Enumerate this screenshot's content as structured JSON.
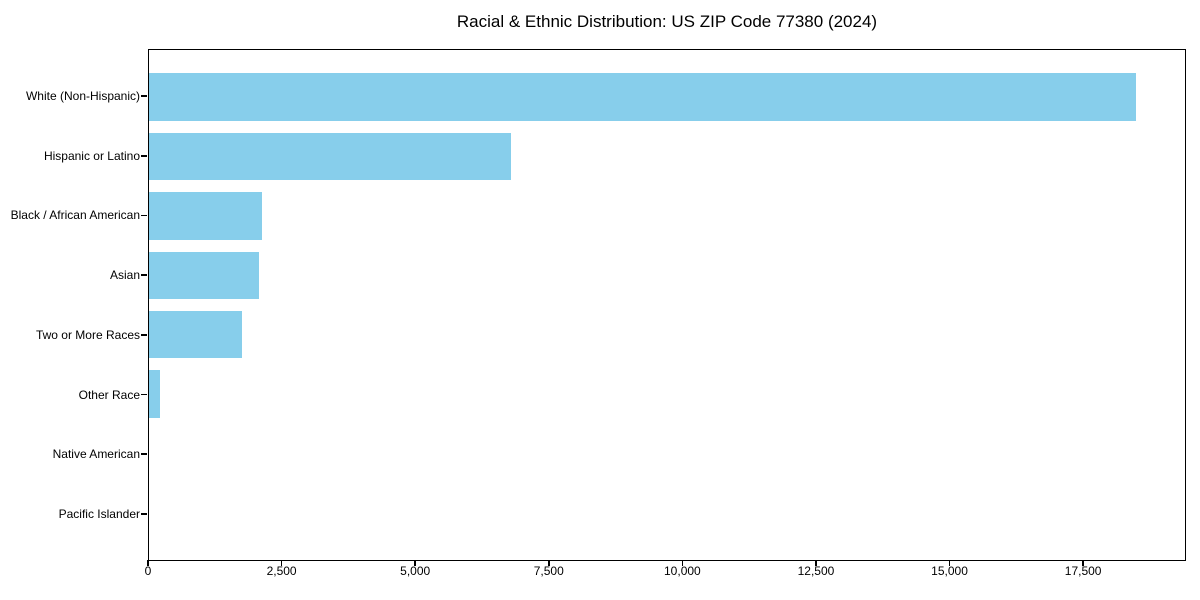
{
  "chart": {
    "title": "Racial & Ethnic Distribution: US ZIP Code 77380 (2024)"
  },
  "chart_data": {
    "type": "bar",
    "orientation": "horizontal",
    "title": "Racial & Ethnic Distribution: US ZIP Code 77380 (2024)",
    "categories": [
      "White (Non-Hispanic)",
      "Hispanic or Latino",
      "Black / African American",
      "Asian",
      "Two or More Races",
      "Other Race",
      "Native American",
      "Pacific Islander"
    ],
    "values": [
      18500,
      6790,
      2110,
      2060,
      1740,
      200,
      0,
      0
    ],
    "xlabel": "",
    "ylabel": "",
    "xlim": [
      0,
      19425
    ],
    "x_ticks": [
      0,
      2500,
      5000,
      7500,
      10000,
      12500,
      15000,
      17500
    ],
    "x_tick_labels": [
      "0",
      "2,500",
      "5,000",
      "7,500",
      "10,000",
      "12,500",
      "15,000",
      "17,500"
    ],
    "bar_color": "#87CEEB",
    "axis_color": "#000000",
    "text_color": "#000000",
    "background_color": "#ffffff",
    "grid": false,
    "legend": "none",
    "categories_top_to_bottom": true
  }
}
